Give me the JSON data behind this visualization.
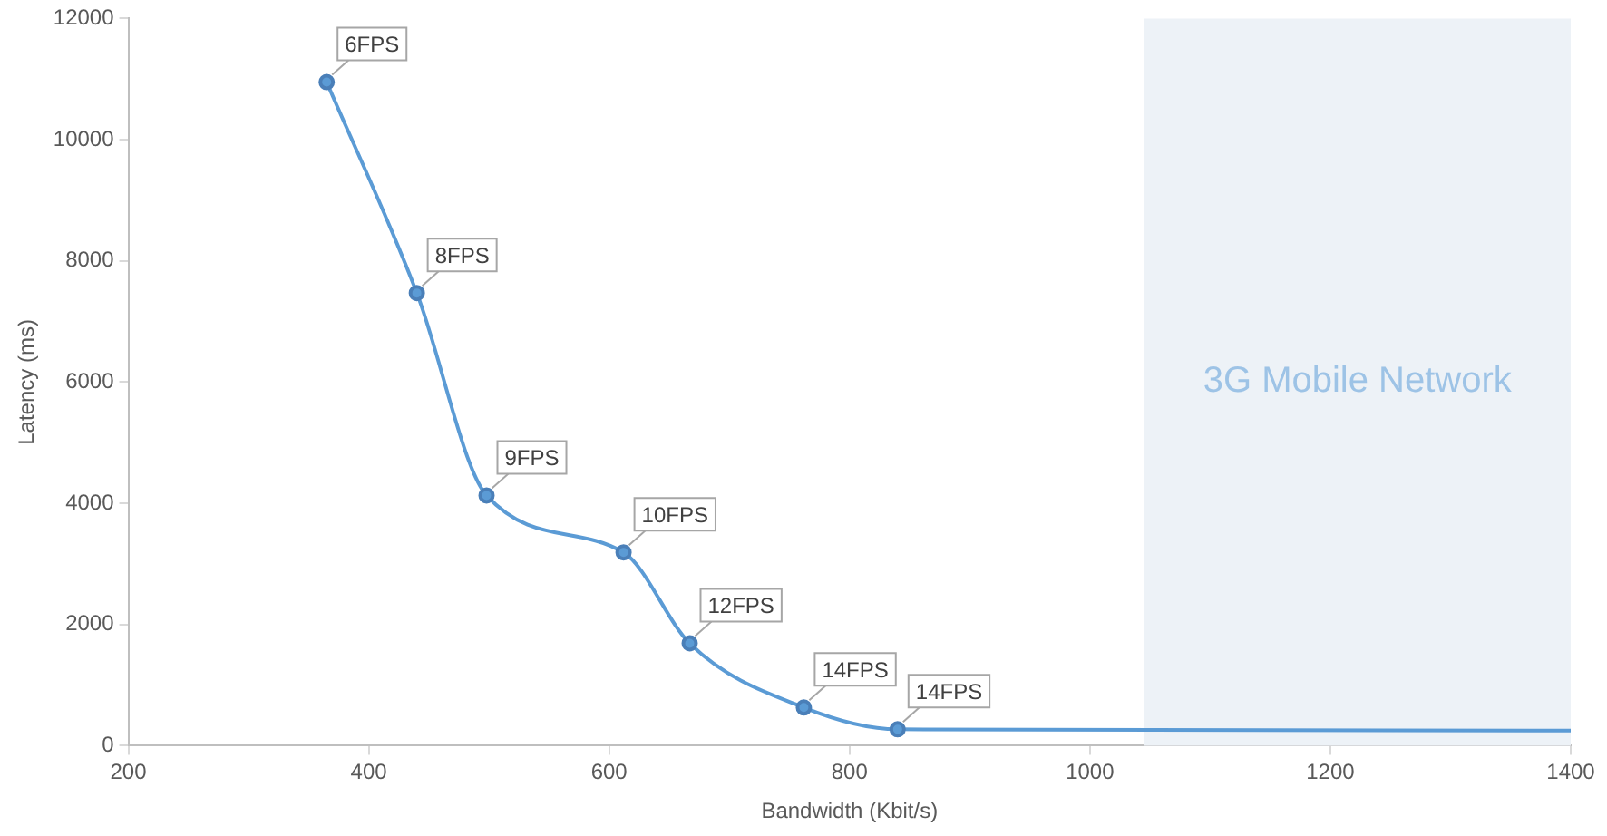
{
  "chart_data": {
    "type": "line",
    "xlabel": "Bandwidth (Kbit/s)",
    "ylabel": "Latency (ms)",
    "x": [
      365,
      440,
      498,
      612,
      667,
      762,
      840,
      1400
    ],
    "series": [
      {
        "color": "#5b9bd5",
        "values": [
          10950,
          7470,
          4130,
          3190,
          1690,
          630,
          270,
          250
        ]
      }
    ],
    "annotations": [
      {
        "text": "6FPS",
        "x": 365,
        "y": 10950
      },
      {
        "text": "8FPS",
        "x": 440,
        "y": 7470
      },
      {
        "text": "9FPS",
        "x": 498,
        "y": 4130
      },
      {
        "text": "10FPS",
        "x": 612,
        "y": 3190
      },
      {
        "text": "12FPS",
        "x": 667,
        "y": 1690
      },
      {
        "text": "14FPS",
        "x": 762,
        "y": 630
      },
      {
        "text": "14FPS",
        "x": 840,
        "y": 270
      }
    ],
    "xlim": [
      200,
      1400
    ],
    "xticks": [
      200,
      400,
      600,
      800,
      1000,
      1200,
      1400
    ],
    "ylim": [
      0,
      12000
    ],
    "yticks": [
      0,
      2000,
      4000,
      6000,
      8000,
      10000,
      12000
    ],
    "bands": [
      {
        "axis": "x",
        "from": 1045,
        "to": 1400,
        "label": "3G Mobile Network",
        "color": "#edf2f7"
      }
    ],
    "grid": false,
    "legend": false,
    "marker": "circle",
    "line_style": "solid"
  }
}
